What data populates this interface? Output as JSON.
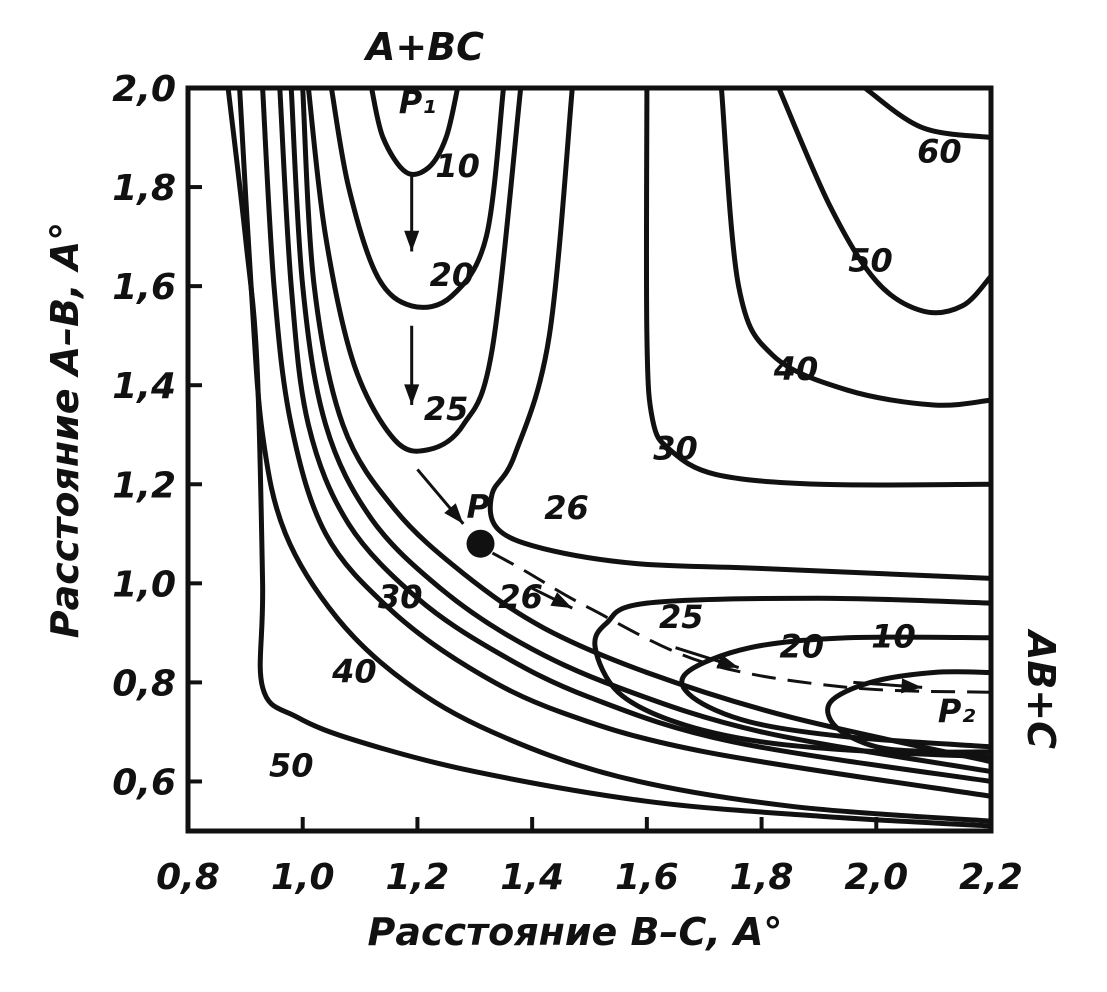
{
  "chart_data": {
    "type": "contour",
    "xlabel": "Расстояние B–C, A°",
    "ylabel": "Расстояние A–B, A°",
    "xlim": [
      0.8,
      2.2
    ],
    "ylim": [
      0.5,
      2.0
    ],
    "x_ticks": [
      {
        "value": 0.8,
        "label": "0,8"
      },
      {
        "value": 1.0,
        "label": "1,0"
      },
      {
        "value": 1.2,
        "label": "1,2"
      },
      {
        "value": 1.4,
        "label": "1,4"
      },
      {
        "value": 1.6,
        "label": "1,6"
      },
      {
        "value": 1.8,
        "label": "1,8"
      },
      {
        "value": 2.0,
        "label": "2,0"
      },
      {
        "value": 2.2,
        "label": "2,2"
      }
    ],
    "y_ticks": [
      {
        "value": 0.6,
        "label": "0,6"
      },
      {
        "value": 0.8,
        "label": "0,8"
      },
      {
        "value": 1.0,
        "label": "1,0"
      },
      {
        "value": 1.2,
        "label": "1,2"
      },
      {
        "value": 1.4,
        "label": "1,4"
      },
      {
        "value": 1.6,
        "label": "1,6"
      },
      {
        "value": 1.8,
        "label": "1,8"
      },
      {
        "value": 2.0,
        "label": "2,0"
      }
    ],
    "corner_labels": {
      "top": "A+BC",
      "right": "AB+C"
    },
    "contours": [
      {
        "level": "10",
        "points": [
          [
            1.12,
            2.0
          ],
          [
            1.14,
            1.9
          ],
          [
            1.18,
            1.83
          ],
          [
            1.22,
            1.84
          ],
          [
            1.25,
            1.9
          ],
          [
            1.27,
            2.0
          ]
        ]
      },
      {
        "level": "20",
        "points": [
          [
            1.05,
            2.0
          ],
          [
            1.08,
            1.8
          ],
          [
            1.13,
            1.62
          ],
          [
            1.19,
            1.56
          ],
          [
            1.26,
            1.58
          ],
          [
            1.32,
            1.7
          ],
          [
            1.35,
            2.0
          ]
        ]
      },
      {
        "level": "25",
        "points": [
          [
            1.01,
            2.0
          ],
          [
            1.04,
            1.7
          ],
          [
            1.09,
            1.44
          ],
          [
            1.16,
            1.29
          ],
          [
            1.22,
            1.27
          ],
          [
            1.28,
            1.32
          ],
          [
            1.33,
            1.47
          ],
          [
            1.38,
            2.0
          ]
        ]
      },
      {
        "level": "30",
        "points": [
          [
            1.6,
            2.0
          ],
          [
            1.6,
            1.5
          ],
          [
            1.61,
            1.33
          ],
          [
            1.64,
            1.27
          ],
          [
            1.72,
            1.22
          ],
          [
            1.9,
            1.2
          ],
          [
            2.2,
            1.2
          ]
        ]
      },
      {
        "level": "26",
        "points": [
          [
            1.47,
            2.0
          ],
          [
            1.43,
            1.5
          ],
          [
            1.37,
            1.26
          ],
          [
            1.33,
            1.18
          ],
          [
            1.34,
            1.11
          ],
          [
            1.42,
            1.07
          ],
          [
            1.58,
            1.04
          ],
          [
            1.8,
            1.03
          ],
          [
            2.2,
            1.01
          ]
        ]
      },
      {
        "level": "40",
        "points": [
          [
            1.73,
            2.0
          ],
          [
            1.76,
            1.6
          ],
          [
            1.82,
            1.46
          ],
          [
            1.95,
            1.39
          ],
          [
            2.1,
            1.36
          ],
          [
            2.2,
            1.37
          ]
        ]
      },
      {
        "level": "50",
        "points": [
          [
            1.83,
            2.0
          ],
          [
            1.92,
            1.76
          ],
          [
            2.0,
            1.61
          ],
          [
            2.08,
            1.55
          ],
          [
            2.15,
            1.56
          ],
          [
            2.2,
            1.62
          ]
        ]
      },
      {
        "level": "60",
        "points": [
          [
            1.98,
            2.0
          ],
          [
            2.08,
            1.92
          ],
          [
            2.2,
            1.9
          ]
        ]
      },
      {
        "level": "25",
        "points": [
          [
            2.2,
            0.96
          ],
          [
            1.9,
            0.97
          ],
          [
            1.6,
            0.96
          ],
          [
            1.53,
            0.92
          ],
          [
            1.51,
            0.87
          ],
          [
            1.55,
            0.78
          ],
          [
            1.65,
            0.72
          ],
          [
            1.8,
            0.68
          ],
          [
            2.0,
            0.66
          ],
          [
            2.2,
            0.65
          ]
        ]
      },
      {
        "level": "20",
        "points": [
          [
            2.2,
            0.89
          ],
          [
            1.95,
            0.89
          ],
          [
            1.78,
            0.87
          ],
          [
            1.67,
            0.82
          ],
          [
            1.68,
            0.77
          ],
          [
            1.78,
            0.72
          ],
          [
            1.95,
            0.69
          ],
          [
            2.2,
            0.67
          ]
        ]
      },
      {
        "level": "10",
        "points": [
          [
            2.2,
            0.82
          ],
          [
            2.1,
            0.82
          ],
          [
            1.99,
            0.8
          ],
          [
            1.92,
            0.76
          ],
          [
            1.93,
            0.71
          ],
          [
            2.0,
            0.67
          ],
          [
            2.1,
            0.66
          ],
          [
            2.2,
            0.66
          ]
        ]
      },
      {
        "level": "",
        "points": [
          [
            1.0,
            2.0
          ],
          [
            1.02,
            1.6
          ],
          [
            1.07,
            1.32
          ],
          [
            1.16,
            1.15
          ],
          [
            1.28,
            1.02
          ],
          [
            1.42,
            0.91
          ],
          [
            1.6,
            0.82
          ],
          [
            1.85,
            0.73
          ],
          [
            2.2,
            0.64
          ]
        ]
      },
      {
        "level": "26",
        "points": [
          [
            0.98,
            2.0
          ],
          [
            1.0,
            1.6
          ],
          [
            1.04,
            1.32
          ],
          [
            1.12,
            1.13
          ],
          [
            1.24,
            0.99
          ],
          [
            1.38,
            0.88
          ],
          [
            1.55,
            0.79
          ],
          [
            1.8,
            0.7
          ],
          [
            2.2,
            0.62
          ]
        ]
      },
      {
        "level": "",
        "points": [
          [
            0.96,
            2.0
          ],
          [
            0.98,
            1.6
          ],
          [
            1.01,
            1.32
          ],
          [
            1.08,
            1.12
          ],
          [
            1.2,
            0.97
          ],
          [
            1.34,
            0.86
          ],
          [
            1.5,
            0.77
          ],
          [
            1.75,
            0.68
          ],
          [
            2.2,
            0.6
          ]
        ]
      },
      {
        "level": "30",
        "points": [
          [
            0.93,
            2.0
          ],
          [
            0.95,
            1.6
          ],
          [
            0.98,
            1.32
          ],
          [
            1.04,
            1.1
          ],
          [
            1.15,
            0.95
          ],
          [
            1.29,
            0.83
          ],
          [
            1.45,
            0.74
          ],
          [
            1.7,
            0.66
          ],
          [
            2.2,
            0.57
          ]
        ]
      },
      {
        "level": "40",
        "points": [
          [
            0.89,
            2.0
          ],
          [
            0.91,
            1.6
          ],
          [
            0.93,
            1.3
          ],
          [
            0.97,
            1.1
          ],
          [
            1.06,
            0.93
          ],
          [
            1.18,
            0.8
          ],
          [
            1.33,
            0.7
          ],
          [
            1.55,
            0.61
          ],
          [
            1.85,
            0.55
          ],
          [
            2.2,
            0.52
          ]
        ]
      },
      {
        "level": "50",
        "points": [
          [
            0.87,
            2.0
          ],
          [
            0.9,
            1.7
          ],
          [
            0.92,
            1.45
          ],
          [
            0.93,
            1.0
          ],
          [
            0.93,
            0.79
          ],
          [
            0.99,
            0.73
          ],
          [
            1.1,
            0.68
          ],
          [
            1.3,
            0.62
          ],
          [
            1.6,
            0.56
          ],
          [
            1.9,
            0.53
          ],
          [
            2.2,
            0.51
          ]
        ]
      }
    ],
    "contour_labels": [
      {
        "text": "10",
        "x": 1.27,
        "y": 1.82
      },
      {
        "text": "20",
        "x": 1.26,
        "y": 1.6
      },
      {
        "text": "25",
        "x": 1.25,
        "y": 1.33
      },
      {
        "text": "30",
        "x": 1.65,
        "y": 1.25
      },
      {
        "text": "26",
        "x": 1.46,
        "y": 1.13
      },
      {
        "text": "40",
        "x": 1.86,
        "y": 1.41
      },
      {
        "text": "50",
        "x": 1.99,
        "y": 1.63
      },
      {
        "text": "60",
        "x": 2.11,
        "y": 1.85
      },
      {
        "text": "26",
        "x": 1.38,
        "y": 0.95
      },
      {
        "text": "30",
        "x": 1.17,
        "y": 0.95
      },
      {
        "text": "40",
        "x": 1.09,
        "y": 0.8
      },
      {
        "text": "50",
        "x": 0.98,
        "y": 0.61
      },
      {
        "text": "25",
        "x": 1.66,
        "y": 0.91
      },
      {
        "text": "20",
        "x": 1.87,
        "y": 0.85
      },
      {
        "text": "10",
        "x": 2.03,
        "y": 0.87
      }
    ],
    "reaction_path": [
      [
        2.2,
        0.78
      ],
      [
        1.95,
        0.79
      ],
      [
        1.7,
        0.84
      ],
      [
        1.5,
        0.95
      ],
      [
        1.38,
        1.03
      ],
      [
        1.3,
        1.08
      ]
    ],
    "arrows": [
      {
        "from": [
          1.19,
          1.83
        ],
        "to": [
          1.19,
          1.67
        ]
      },
      {
        "from": [
          1.19,
          1.52
        ],
        "to": [
          1.19,
          1.36
        ]
      },
      {
        "from": [
          1.2,
          1.23
        ],
        "to": [
          1.28,
          1.12
        ]
      },
      {
        "from": [
          1.4,
          0.99
        ],
        "to": [
          1.47,
          0.95
        ]
      },
      {
        "from": [
          1.65,
          0.87
        ],
        "to": [
          1.76,
          0.83
        ]
      },
      {
        "from": [
          1.96,
          0.8
        ],
        "to": [
          2.08,
          0.79
        ]
      }
    ],
    "points": [
      {
        "label": "P₁",
        "x": 1.2,
        "y": 1.95
      },
      {
        "label": "P",
        "x": 1.31,
        "y": 1.08
      },
      {
        "label": "P₂",
        "x": 2.14,
        "y": 0.72
      }
    ]
  }
}
